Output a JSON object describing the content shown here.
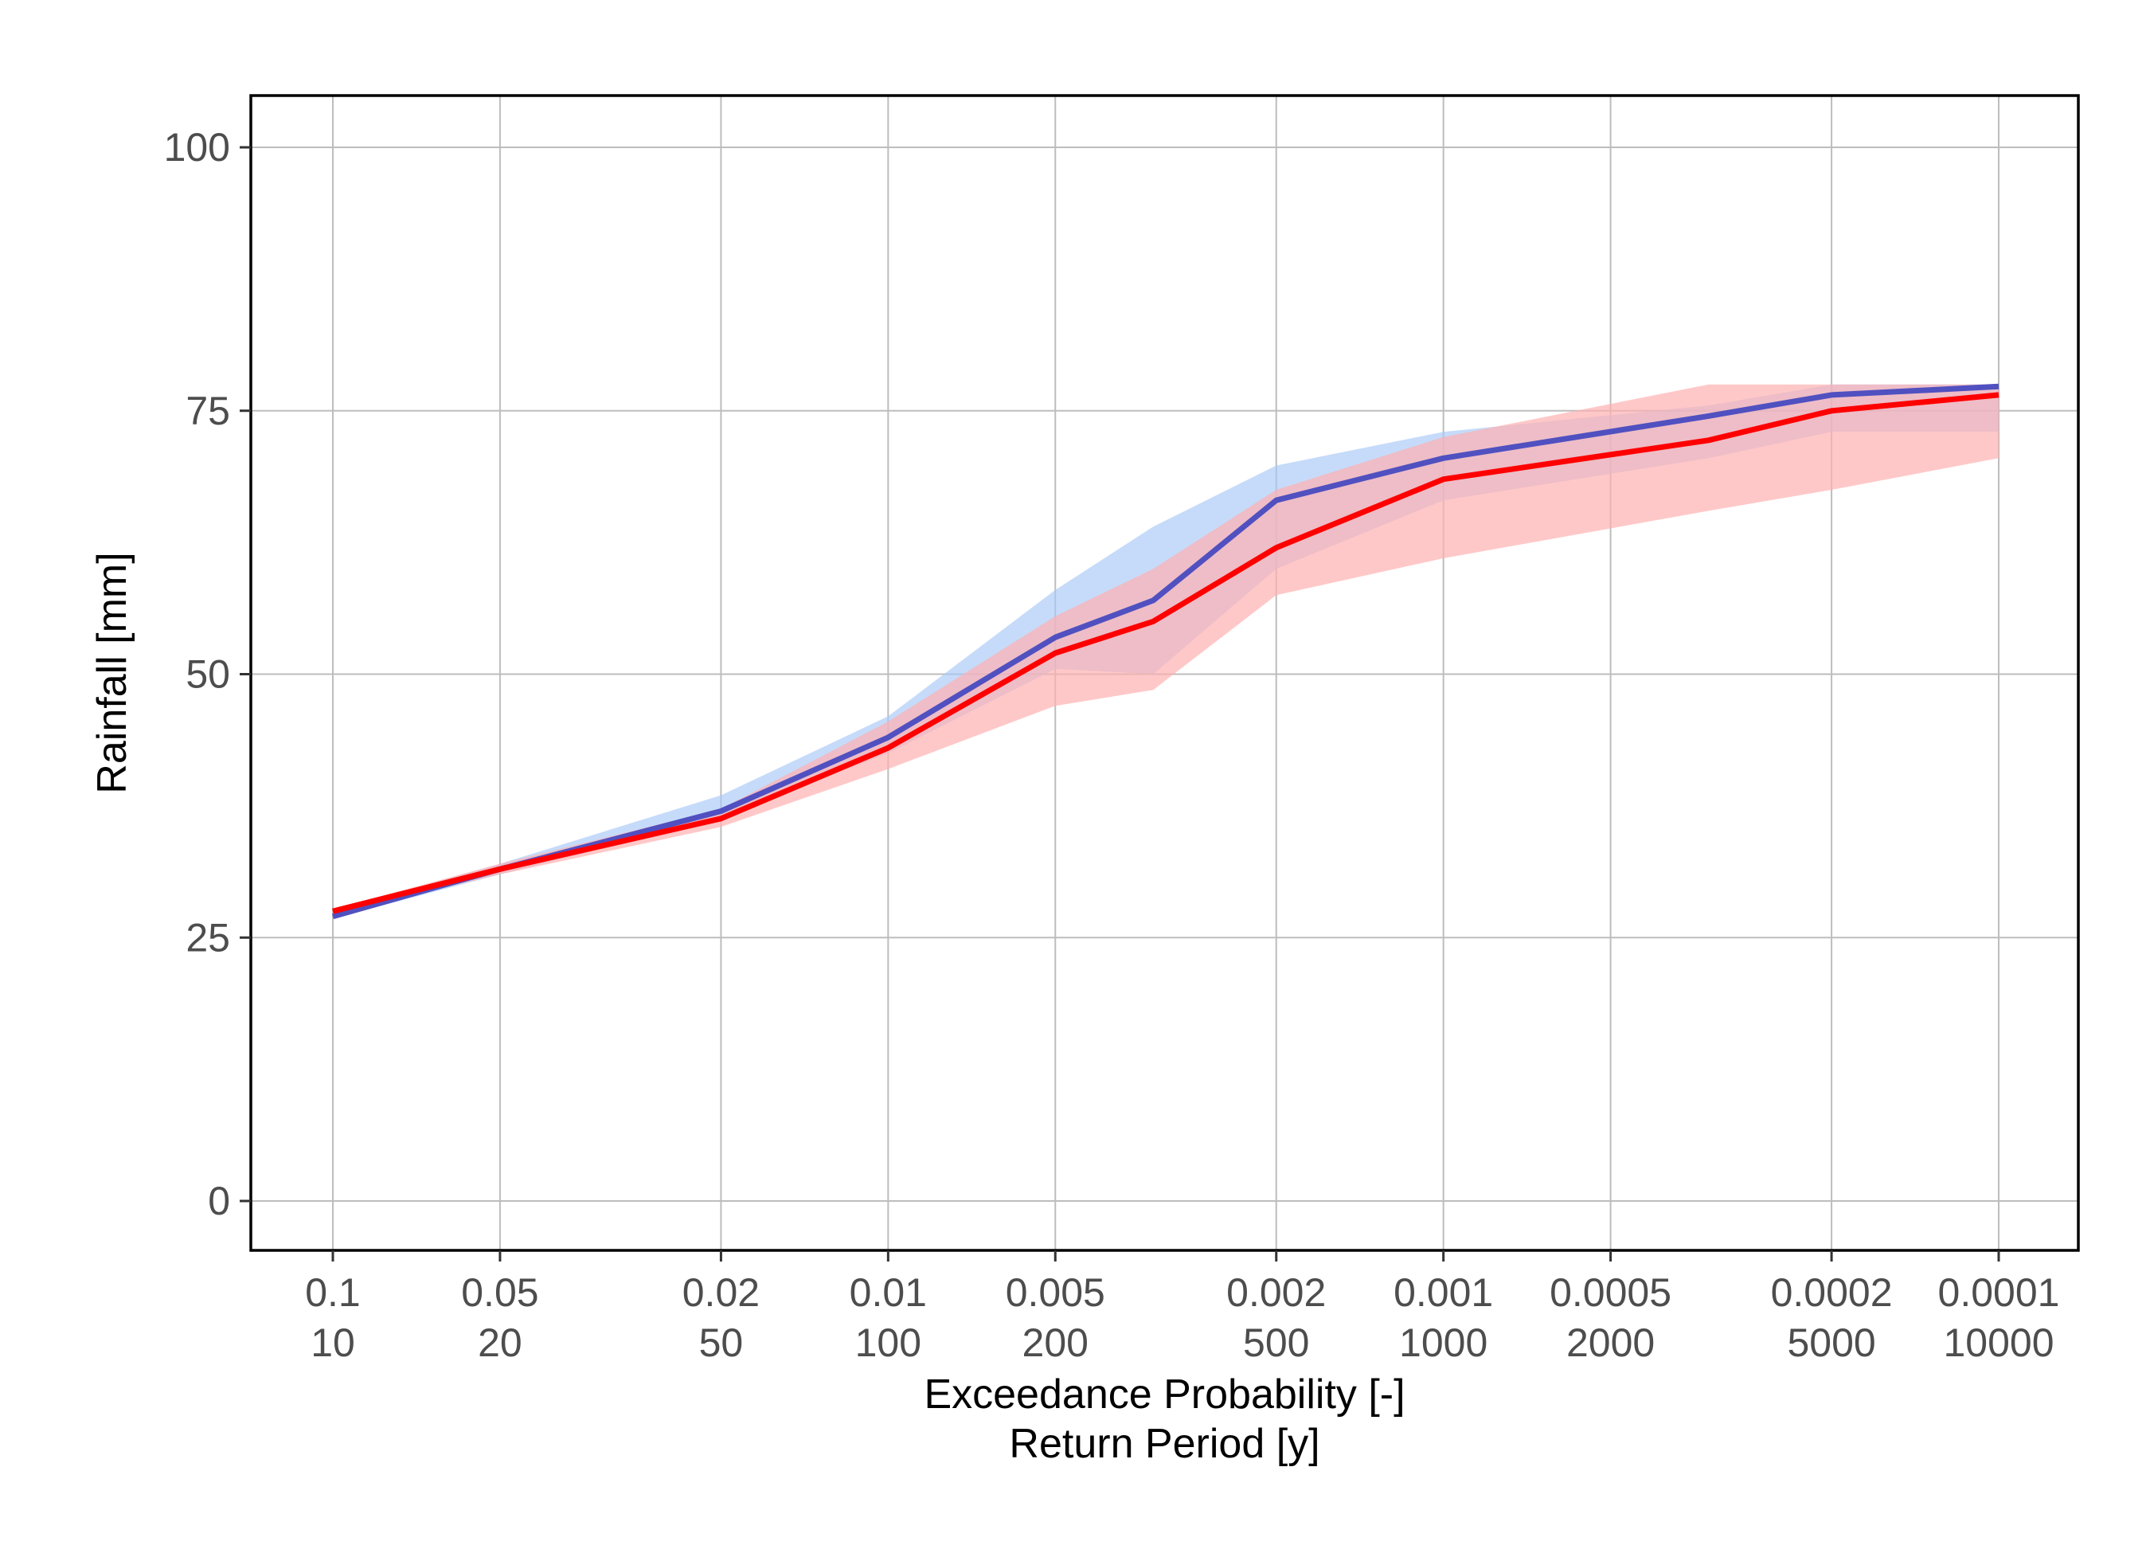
{
  "chart_data": {
    "type": "line",
    "xlabel_line1": "Exceedance Probability [-]",
    "xlabel_line2": "Return Period [y]",
    "ylabel": "Rainfall [mm]",
    "x_scale": "log (exceedance probability, reversed)",
    "ylim": [
      -5,
      105
    ],
    "grid": true,
    "legend": "none",
    "yticks": [
      0,
      25,
      50,
      75,
      100
    ],
    "xticks": [
      {
        "prob": 0.1,
        "prob_label": "0.1",
        "period_label": "10"
      },
      {
        "prob": 0.05,
        "prob_label": "0.05",
        "period_label": "20"
      },
      {
        "prob": 0.02,
        "prob_label": "0.02",
        "period_label": "50"
      },
      {
        "prob": 0.01,
        "prob_label": "0.01",
        "period_label": "100"
      },
      {
        "prob": 0.005,
        "prob_label": "0.005",
        "period_label": "200"
      },
      {
        "prob": 0.002,
        "prob_label": "0.002",
        "period_label": "500"
      },
      {
        "prob": 0.001,
        "prob_label": "0.001",
        "period_label": "1000"
      },
      {
        "prob": 0.0005,
        "prob_label": "0.0005",
        "period_label": "2000"
      },
      {
        "prob": 0.0002,
        "prob_label": "0.0002",
        "period_label": "5000"
      },
      {
        "prob": 0.0001,
        "prob_label": "0.0001",
        "period_label": "10000"
      }
    ],
    "series": [
      {
        "color": "#5050c0",
        "band_color": "#a8c8f8",
        "x": [
          0.1,
          0.05,
          0.02,
          0.01,
          0.005,
          0.00333,
          0.002,
          0.001,
          0.000333,
          0.0002,
          0.0001
        ],
        "y": [
          27.0,
          31.5,
          37.0,
          44.0,
          53.5,
          57.0,
          66.5,
          70.5,
          74.5,
          76.5,
          77.3
        ],
        "lower": [
          26.8,
          31.0,
          36.3,
          42.5,
          50.5,
          50.0,
          60.0,
          66.5,
          70.5,
          73.0,
          73.0
        ],
        "upper": [
          27.5,
          32.0,
          38.5,
          46.0,
          58.0,
          64.0,
          69.8,
          73.0,
          75.5,
          77.5,
          77.5
        ]
      },
      {
        "color": "#ff0000",
        "band_color": "#ffb0b0",
        "x": [
          0.1,
          0.05,
          0.02,
          0.01,
          0.005,
          0.00333,
          0.002,
          0.001,
          0.000333,
          0.0002,
          0.0001
        ],
        "y": [
          27.5,
          31.5,
          36.3,
          43.0,
          52.0,
          55.0,
          62.0,
          68.5,
          72.2,
          75.0,
          76.5
        ],
        "lower": [
          27.2,
          31.0,
          35.5,
          41.0,
          47.0,
          48.5,
          57.5,
          61.0,
          65.5,
          67.5,
          70.5
        ],
        "upper": [
          27.7,
          32.0,
          37.2,
          45.5,
          55.5,
          60.0,
          67.5,
          72.5,
          77.5,
          77.5,
          77.5
        ]
      }
    ]
  },
  "colors": {
    "panel_background": "#ffffff",
    "grid": "#bdbdbd",
    "border": "#000000"
  }
}
